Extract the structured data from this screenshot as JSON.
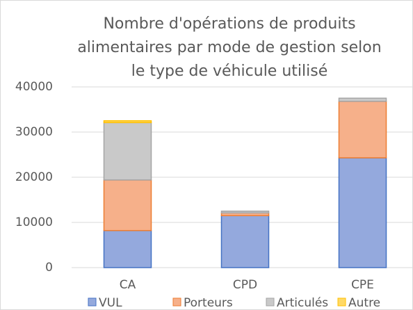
{
  "chart_data": {
    "type": "stacked_bar",
    "title": "Nombre d'opérations de produits alimentaires par mode de gestion selon le type de véhicule utilisé",
    "categories": [
      "CA",
      "CPD",
      "CPE"
    ],
    "series": [
      {
        "name": "VUL",
        "color": "#94a9dd",
        "edgecolor": "#4472c4",
        "values": [
          8200,
          11500,
          24300
        ]
      },
      {
        "name": "Porteurs",
        "color": "#f6b08a",
        "edgecolor": "#ed7d31",
        "values": [
          11200,
          600,
          12500
        ]
      },
      {
        "name": "Articulés",
        "color": "#c9c9c9",
        "edgecolor": "#a5a5a5",
        "values": [
          12700,
          400,
          700
        ]
      },
      {
        "name": "Autre",
        "color": "#ffd966",
        "edgecolor": "#ffc000",
        "values": [
          400,
          0,
          0
        ]
      }
    ],
    "ylim": [
      0,
      40000
    ],
    "yticks": [
      0,
      10000,
      20000,
      30000,
      40000
    ],
    "grid": true,
    "legend": "bottom"
  }
}
